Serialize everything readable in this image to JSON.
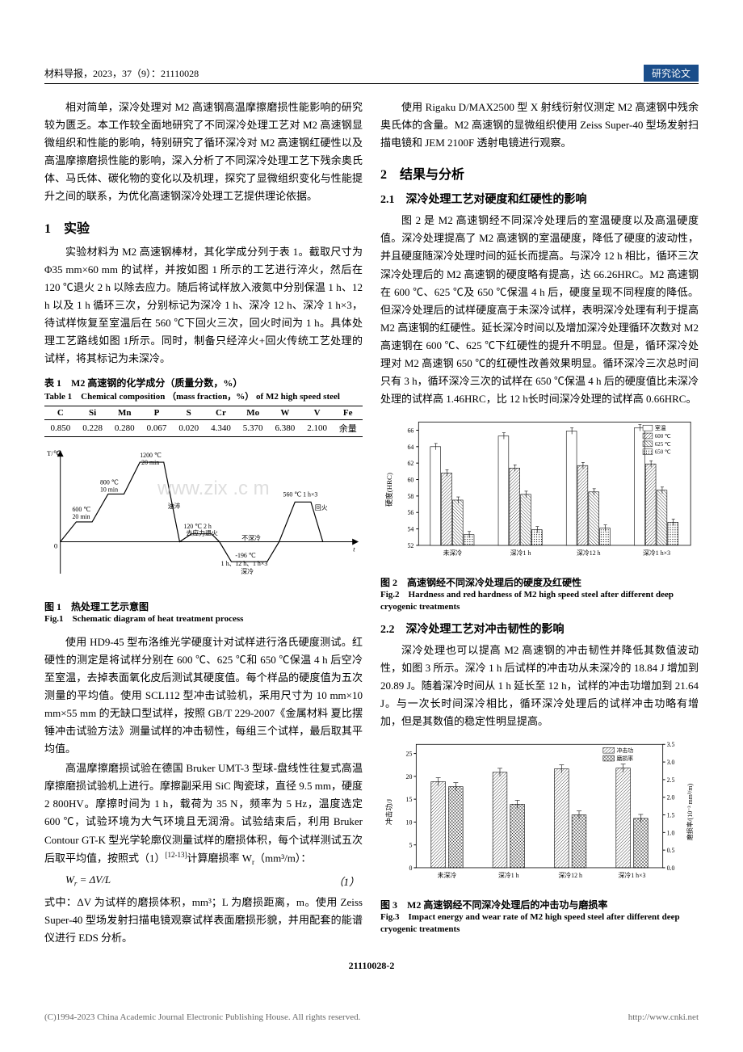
{
  "header": {
    "left": "材料导报，2023，37（9）：21110028",
    "right": "研究论文"
  },
  "col1": {
    "intro_p1": "相对简单，深冷处理对 M2 高速钢高温摩擦磨损性能影响的研究较为匮乏。本工作较全面地研究了不同深冷处理工艺对 M2 高速钢显微组织和性能的影响，特别研究了循环深冷对 M2 高速钢红硬性以及高温摩擦磨损性能的影响，深入分析了不同深冷处理工艺下残余奥氏体、马氏体、碳化物的变化以及机理，探究了显微组织变化与性能提升之间的联系，为优化高速钢深冷处理工艺提供理论依据。",
    "sec1_title": "1　实验",
    "sec1_p1": "实验材料为 M2 高速钢棒材，其化学成分列于表 1。截取尺寸为 Φ35 mm×60 mm 的试样，并按如图 1 所示的工艺进行淬火，然后在 120 ℃退火 2 h 以除去应力。随后将试样放入液氮中分别保温 1 h、12 h 以及 1 h 循环三次，分别标记为深冷 1 h、深冷 12 h、深冷 1 h×3，待试样恢复至室温后在 560 ℃下回火三次，回火时间为 1 h。具体处理工艺路线如图 1所示。同时，制备只经淬火+回火传统工艺处理的试样，将其标记为未深冷。",
    "tab1_cn": "表 1　M2 高速钢的化学成分（质量分数，%）",
    "tab1_en": "Table 1　Chemical composition （mass fraction，%） of M2 high speed steel",
    "tab1_headers": [
      "C",
      "Si",
      "Mn",
      "P",
      "S",
      "Cr",
      "Mo",
      "W",
      "V",
      "Fe"
    ],
    "tab1_row": [
      "0.850",
      "0.228",
      "0.280",
      "0.067",
      "0.020",
      "4.340",
      "5.370",
      "6.380",
      "2.100",
      "余量"
    ],
    "fig1": {
      "labels": {
        "y_axis": "T/℃",
        "t800": "800 ℃\n10 min",
        "t1200": "1200 ℃\n20 min",
        "t600": "600 ℃\n20 min",
        "oil": "油淬",
        "t120": "120 ℃  2 h",
        "stress": "去应力退火",
        "no_cryo": "不深冷",
        "cryo_temp": "-196 ℃",
        "cryo_time": "1 h、12 h、1 h×3",
        "cryo": "深冷",
        "t560": "560 ℃  1 h×3",
        "temper": "回火",
        "zero": "0",
        "t_axis": "t"
      },
      "caption_cn": "图 1　热处理工艺示意图",
      "caption_en": "Fig.1　Schematic diagram of heat treatment process"
    },
    "sec1_p2": "使用 HD9-45 型布洛维光学硬度计对试样进行洛氏硬度测试。红硬性的测定是将试样分别在 600 ℃、625 ℃和 650 ℃保温 4 h 后空冷至室温，去掉表面氧化皮后测试其硬度值。每个样品的硬度值为五次测量的平均值。使用 SCL112 型冲击试验机，采用尺寸为 10 mm×10 mm×55 mm 的无缺口型试样，按照 GB/T 229-2007《金属材料 夏比摆锤冲击试验方法》测量试样的冲击韧性，每组三个试样，最后取其平均值。",
    "sec1_p3a": "高温摩擦磨损试验在德国 Bruker UMT-3 型球-盘线性往复式高温摩擦磨损试验机上进行。摩擦副采用 SiC 陶瓷球，直径 9.5 mm，硬度 2 800HV。摩擦时间为 1 h，载荷为 35 N，频率为 5 Hz，温度选定 600 ℃，试验环境为大气环境且无润滑。试验结束后，利用 Bruker Contour GT-K 型光学轮廓仪测量试样的磨损体积，每个试样测试五次后取平均值，按照式（1）",
    "sec1_p3b": "计算磨损率 W",
    "sec1_p3c": "（mm³/m）：",
    "ref_sup": "[12-13]",
    "formula_left": "W",
    "formula_sub": "r",
    "formula_eq": " = ΔV/L",
    "formula_num": "（1）",
    "sec1_p4": "式中：ΔV 为试样的磨损体积，mm³；L 为磨损距离，m。使用 Zeiss Super-40 型场发射扫描电镜观察试样表面磨损形貌，并用配套的能谱仪进行 EDS 分析。"
  },
  "col2": {
    "top_p": "使用 Rigaku D/MAX2500 型 X 射线衍射仪测定 M2 高速钢中残余奥氏体的含量。M2 高速钢的显微组织使用 Zeiss Super-40 型场发射扫描电镜和 JEM 2100F 透射电镜进行观察。",
    "sec2_title": "2　结果与分析",
    "sub21_title": "2.1　深冷处理工艺对硬度和红硬性的影响",
    "sub21_p1": "图 2 是 M2 高速钢经不同深冷处理后的室温硬度以及高温硬度值。深冷处理提高了 M2 高速钢的室温硬度，降低了硬度的波动性，并且硬度随深冷处理时间的延长而提高。与深冷 12 h 相比，循环三次深冷处理后的 M2 高速钢的硬度略有提高，达 66.26HRC。M2 高速钢在 600 ℃、625 ℃及 650 ℃保温 4 h 后，硬度呈现不同程度的降低。但深冷处理后的试样硬度高于未深冷试样，表明深冷处理有利于提高 M2 高速钢的红硬性。延长深冷时间以及增加深冷处理循环次数对 M2 高速钢在 600 ℃、625 ℃下红硬性的提升不明显。但是，循环深冷处理对 M2 高速钢 650 ℃的红硬性改善效果明显。循环深冷三次总时间只有 3 h，循环深冷三次的试样在 650 ℃保温 4 h 后的硬度值比未深冷处理的试样高 1.46HRC，比 12 h长时间深冷处理的试样高 0.66HRC。",
    "fig2": {
      "ylabel": "硬度(HRC)",
      "ylim": [
        52,
        67
      ],
      "yticks": [
        52,
        54,
        56,
        58,
        60,
        62,
        64,
        66
      ],
      "categories": [
        "未深冷",
        "深冷1 h",
        "深冷12 h",
        "深冷1 h×3"
      ],
      "legend": [
        {
          "label": "室温",
          "fill": "#ffffff"
        },
        {
          "label": "600 ℃",
          "fill": "url(#h2a)"
        },
        {
          "label": "625 ℃",
          "fill": "url(#h2b)"
        },
        {
          "label": "650 ℃",
          "fill": "url(#h2c)"
        }
      ],
      "series": [
        [
          64.0,
          60.8,
          57.5,
          53.3
        ],
        [
          65.3,
          61.4,
          58.2,
          53.9
        ],
        [
          65.9,
          61.7,
          58.5,
          54.1
        ],
        [
          66.3,
          61.9,
          58.7,
          54.8
        ]
      ],
      "caption_cn": "图 2　高速钢经不同深冷处理后的硬度及红硬性",
      "caption_en": "Fig.2　Hardness and red hardness of M2 high speed steel after different deep cryogenic treatments"
    },
    "sub22_title": "2.2　深冷处理工艺对冲击韧性的影响",
    "sub22_p1": "深冷处理也可以提高 M2 高速钢的冲击韧性并降低其数值波动性，如图 3 所示。深冷 1 h 后试样的冲击功从未深冷的 18.84 J 增加到 20.89 J。随着深冷时间从 1 h 延长至 12 h，试样的冲击功增加到 21.64 J。与一次长时间深冷相比，循环深冷处理后的试样冲击功略有增加，但是其数值的稳定性明显提高。",
    "fig3": {
      "y1label": "冲击功/J",
      "y2label": "磨损率/(10⁻³ mm³/m)",
      "y1lim": [
        0,
        27
      ],
      "y1ticks": [
        0,
        5,
        10,
        15,
        20,
        25
      ],
      "y2lim": [
        0,
        3.5
      ],
      "y2ticks": [
        0.0,
        0.5,
        1.0,
        1.5,
        2.0,
        2.5,
        3.0,
        3.5
      ],
      "categories": [
        "未深冷",
        "深冷1 h",
        "深冷12 h",
        "深冷1 h×3"
      ],
      "legend": [
        {
          "label": "冲击功",
          "fill": "url(#h3a)"
        },
        {
          "label": "磨损率",
          "fill": "url(#h3b)"
        }
      ],
      "impact": [
        18.84,
        20.89,
        21.64,
        21.8
      ],
      "wear": [
        2.3,
        1.8,
        1.5,
        1.4
      ],
      "caption_cn": "图 3　M2 高速钢经不同深冷处理后的冲击功与磨损率",
      "caption_en": "Fig.3　Impact energy and wear rate of M2 high speed steel after different deep cryogenic treatments"
    }
  },
  "pagenum": "21110028-2",
  "footer": {
    "left": "(C)1994-2023 China Academic Journal Electronic Publishing House. All rights reserved.",
    "right": "http://www.cnki.net"
  },
  "watermark": "www.zix .c m"
}
